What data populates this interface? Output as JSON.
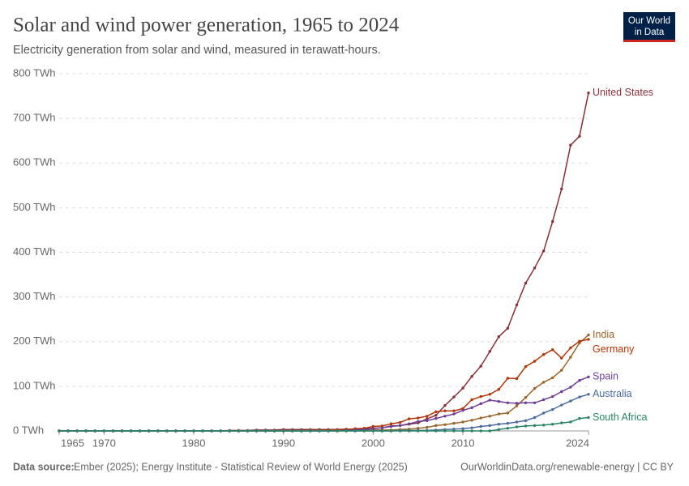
{
  "header": {
    "title": "Solar and wind power generation, 1965 to 2024",
    "subtitle": "Electricity generation from solar and wind, measured in terawatt-hours.",
    "logo": [
      "Our World",
      "in Data"
    ]
  },
  "footer": {
    "source_label": "Data source:",
    "source": "Ember (2025); Energy Institute - Statistical Review of World Energy (2025)",
    "url": "OurWorldinData.org/renewable-energy | CC BY"
  },
  "chart_data": {
    "type": "line",
    "x": [
      1965,
      1966,
      1967,
      1968,
      1969,
      1970,
      1971,
      1972,
      1973,
      1974,
      1975,
      1976,
      1977,
      1978,
      1979,
      1980,
      1981,
      1982,
      1983,
      1984,
      1985,
      1986,
      1987,
      1988,
      1989,
      1990,
      1991,
      1992,
      1993,
      1994,
      1995,
      1996,
      1997,
      1998,
      1999,
      2000,
      2001,
      2002,
      2003,
      2004,
      2005,
      2006,
      2007,
      2008,
      2009,
      2010,
      2011,
      2012,
      2013,
      2014,
      2015,
      2016,
      2017,
      2018,
      2019,
      2020,
      2021,
      2022,
      2023,
      2024
    ],
    "xlim": [
      1965,
      2024
    ],
    "xticks": [
      1965,
      1970,
      1980,
      1990,
      2000,
      2010,
      2024
    ],
    "ylim": [
      0,
      800
    ],
    "yticks": [
      {
        "value": 0,
        "label": "0 TWh"
      },
      {
        "value": 100,
        "label": "100 TWh"
      },
      {
        "value": 200,
        "label": "200 TWh"
      },
      {
        "value": 300,
        "label": "300 TWh"
      },
      {
        "value": 400,
        "label": "400 TWh"
      },
      {
        "value": 500,
        "label": "500 TWh"
      },
      {
        "value": 600,
        "label": "600 TWh"
      },
      {
        "value": 700,
        "label": "700 TWh"
      },
      {
        "value": 800,
        "label": "800 TWh"
      }
    ],
    "grid": true,
    "series": [
      {
        "name": "United States",
        "color": "#883039",
        "values": [
          0,
          0,
          0,
          0,
          0,
          0,
          0,
          0,
          0,
          0,
          0,
          0,
          0,
          0,
          0,
          0,
          0,
          0,
          0,
          1,
          1,
          1,
          2,
          2,
          2,
          3,
          3,
          3,
          3,
          3,
          3,
          3,
          4,
          4,
          5,
          6,
          7,
          11,
          12,
          15,
          18,
          27,
          35,
          57,
          76,
          96,
          122,
          145,
          178,
          211,
          230,
          282,
          331,
          365,
          403,
          469,
          542,
          640,
          660,
          757
        ]
      },
      {
        "name": "India",
        "color": "#9a652b",
        "values": [
          0,
          0,
          0,
          0,
          0,
          0,
          0,
          0,
          0,
          0,
          0,
          0,
          0,
          0,
          0,
          0,
          0,
          0,
          0,
          0,
          0,
          0,
          0,
          0,
          0,
          0,
          0,
          0,
          0,
          0,
          1,
          1,
          1,
          1,
          1,
          2,
          2,
          2,
          3,
          4,
          6,
          8,
          12,
          14,
          17,
          20,
          24,
          29,
          33,
          38,
          40,
          56,
          75,
          95,
          109,
          119,
          136,
          165,
          197,
          215
        ]
      },
      {
        "name": "Germany",
        "color": "#b13507",
        "values": [
          0,
          0,
          0,
          0,
          0,
          0,
          0,
          0,
          0,
          0,
          0,
          0,
          0,
          0,
          0,
          0,
          0,
          0,
          0,
          0,
          0,
          0,
          0,
          0,
          0,
          0,
          0,
          0,
          1,
          1,
          2,
          2,
          3,
          5,
          6,
          10,
          11,
          16,
          19,
          27,
          29,
          33,
          43,
          45,
          45,
          50,
          70,
          77,
          82,
          93,
          118,
          117,
          144,
          156,
          171,
          182,
          163,
          186,
          201,
          205
        ]
      },
      {
        "name": "Spain",
        "color": "#6d3e91",
        "values": [
          0,
          0,
          0,
          0,
          0,
          0,
          0,
          0,
          0,
          0,
          0,
          0,
          0,
          0,
          0,
          0,
          0,
          0,
          0,
          0,
          0,
          0,
          0,
          0,
          0,
          0,
          0,
          0,
          0,
          0,
          0,
          0,
          1,
          2,
          3,
          5,
          7,
          10,
          12,
          16,
          21,
          23,
          28,
          33,
          38,
          46,
          52,
          61,
          69,
          66,
          63,
          62,
          63,
          63,
          70,
          77,
          88,
          98,
          113,
          121
        ]
      },
      {
        "name": "Australia",
        "color": "#4c6a9c",
        "values": [
          0,
          0,
          0,
          0,
          0,
          0,
          0,
          0,
          0,
          0,
          0,
          0,
          0,
          0,
          0,
          0,
          0,
          0,
          0,
          0,
          0,
          0,
          0,
          0,
          0,
          0,
          0,
          0,
          0,
          0,
          0,
          0,
          0,
          0,
          0,
          0,
          0,
          0,
          1,
          1,
          1,
          1,
          2,
          3,
          4,
          5,
          7,
          10,
          12,
          15,
          17,
          20,
          23,
          30,
          40,
          48,
          58,
          67,
          76,
          82
        ]
      },
      {
        "name": "South Africa",
        "color": "#2c8465",
        "values": [
          0,
          0,
          0,
          0,
          0,
          0,
          0,
          0,
          0,
          0,
          0,
          0,
          0,
          0,
          0,
          0,
          0,
          0,
          0,
          0,
          0,
          0,
          0,
          0,
          0,
          0,
          0,
          0,
          0,
          0,
          0,
          0,
          0,
          0,
          0,
          0,
          0,
          0,
          0,
          0,
          0,
          0,
          0,
          0,
          0,
          0,
          0,
          0,
          0,
          3,
          6,
          9,
          11,
          12,
          13,
          15,
          18,
          20,
          28,
          30
        ]
      }
    ]
  }
}
